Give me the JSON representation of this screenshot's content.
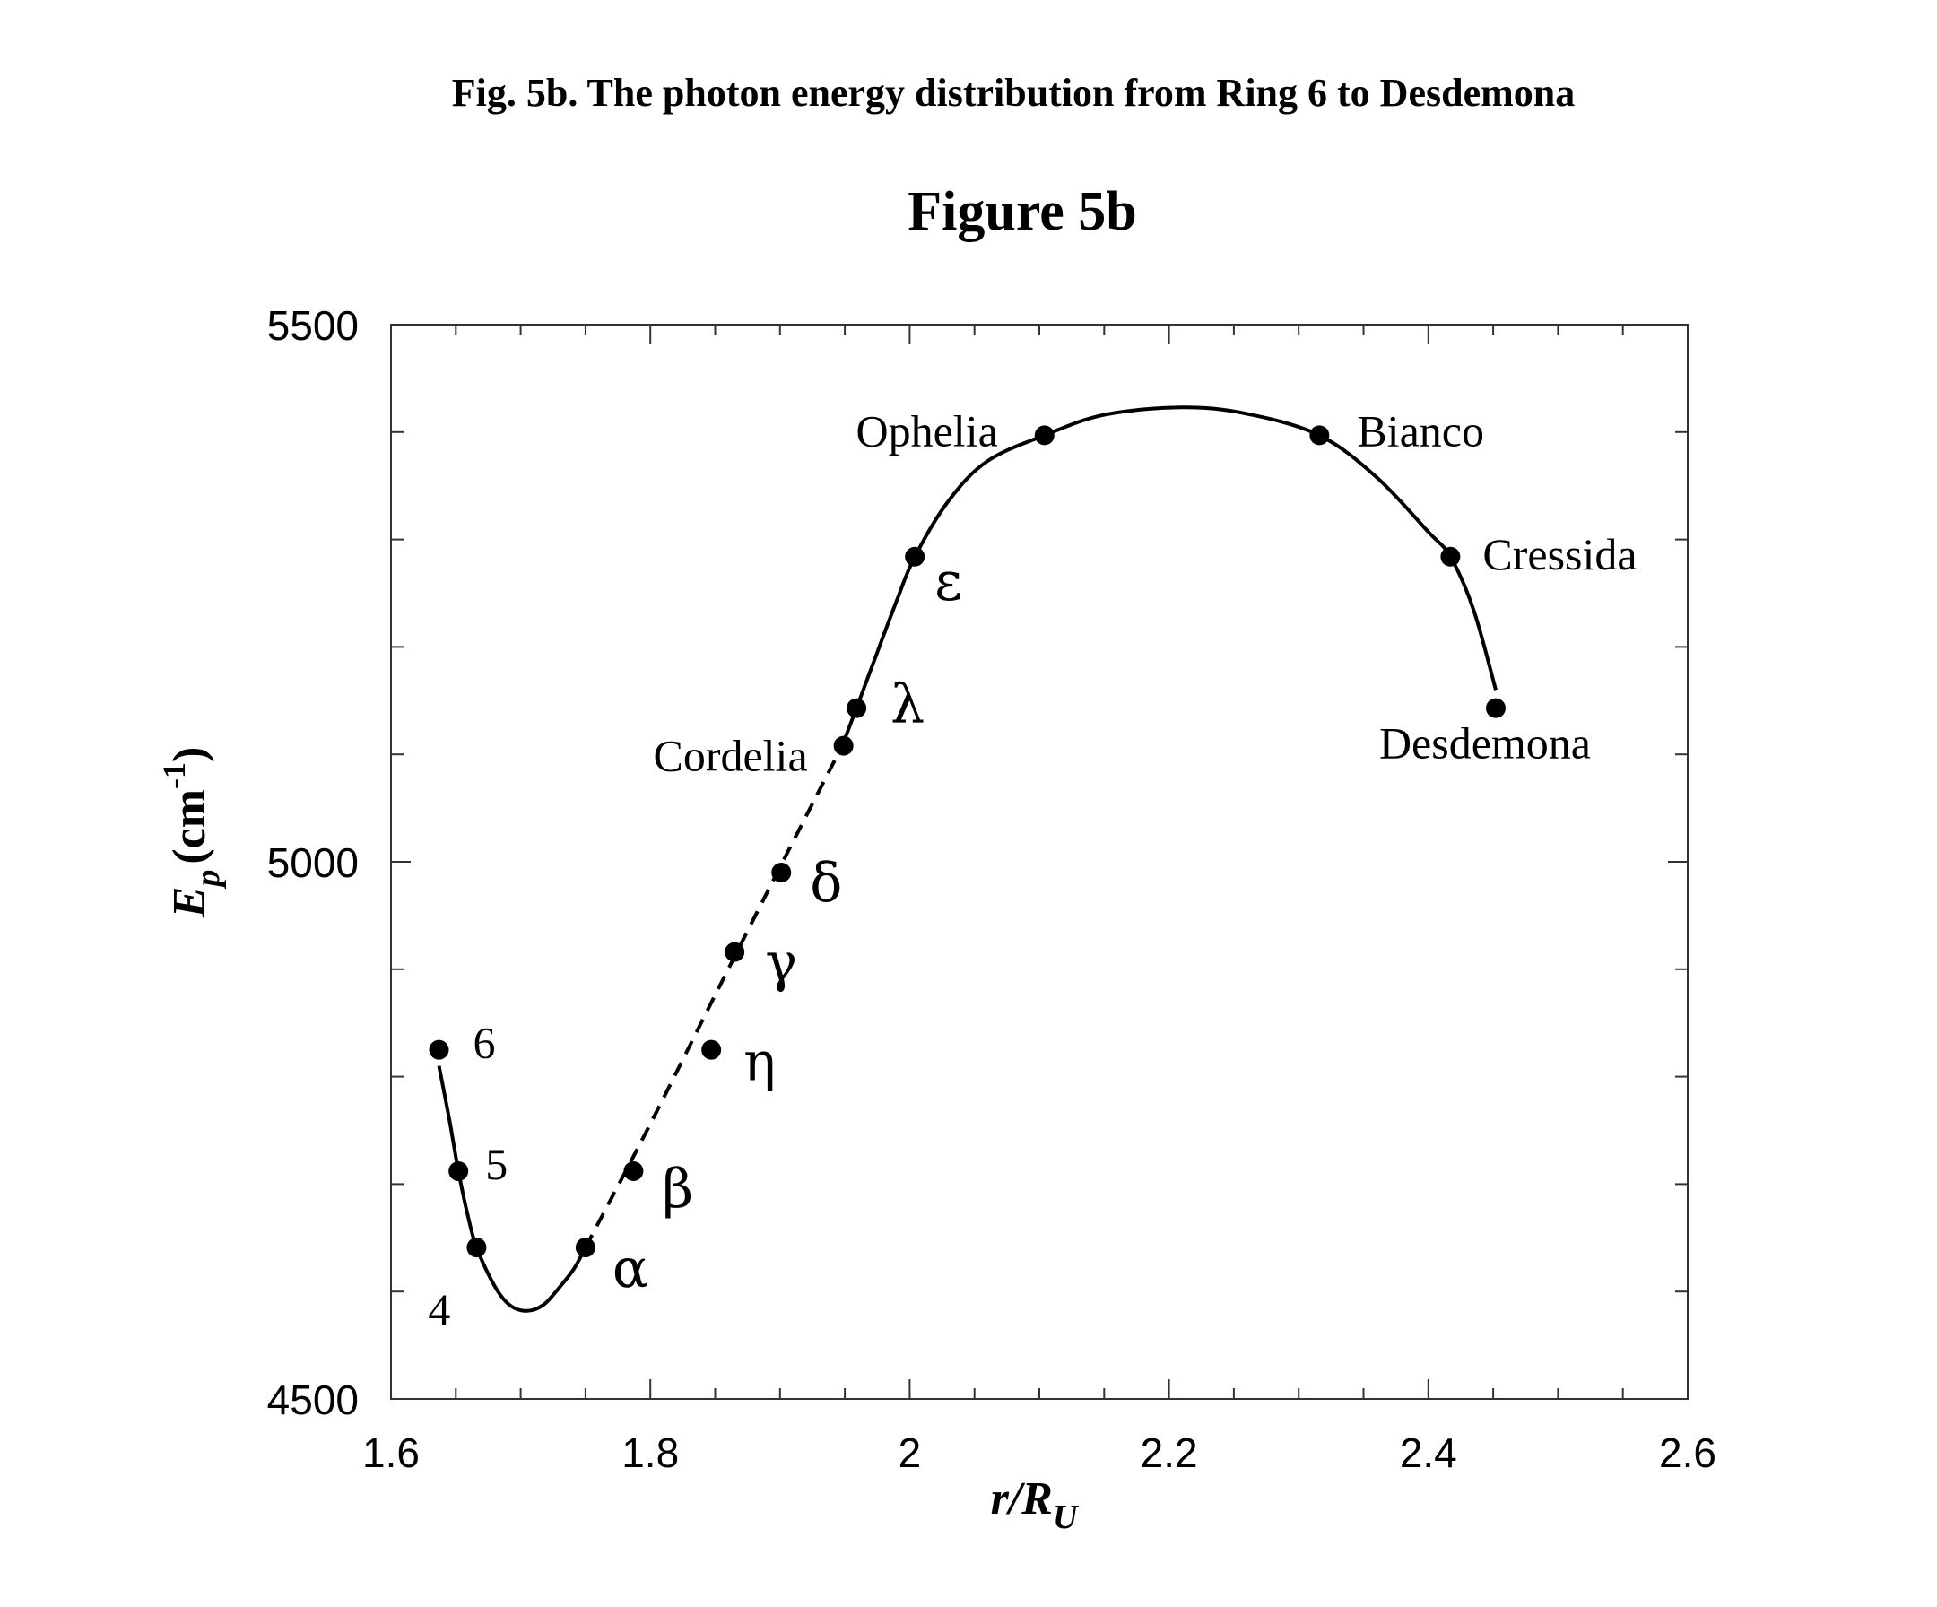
{
  "caption": "Fig. 5b. The photon energy distribution from Ring 6 to Desdemona",
  "chart_data": {
    "type": "scatter",
    "title": "Figure 5b",
    "xlabel": {
      "main": "r/R",
      "subscript": "U"
    },
    "ylabel": {
      "main": "E",
      "subscript": "p",
      "unit": "(cm",
      "superscript": "-1",
      "close": ")"
    },
    "xlim": [
      1.6,
      2.6
    ],
    "ylim": [
      4500,
      5500
    ],
    "xticks": [
      1.6,
      1.8,
      2.0,
      2.2,
      2.4,
      2.6
    ],
    "xtick_labels": [
      "1.6",
      "1.8",
      "2",
      "2.2",
      "2.4",
      "2.6"
    ],
    "yticks": [
      4500,
      5000,
      5500
    ],
    "ytick_labels": [
      "4500",
      "5000",
      "5500"
    ],
    "grid": false,
    "points": [
      {
        "label": "6",
        "x": 1.637,
        "y": 4825
      },
      {
        "label": "5",
        "x": 1.652,
        "y": 4712
      },
      {
        "label": "4",
        "x": 1.666,
        "y": 4641
      },
      {
        "label": "α",
        "x": 1.75,
        "y": 4641
      },
      {
        "label": "β",
        "x": 1.787,
        "y": 4712
      },
      {
        "label": "η",
        "x": 1.847,
        "y": 4825
      },
      {
        "label": "γ",
        "x": 1.865,
        "y": 4916
      },
      {
        "label": "δ",
        "x": 1.901,
        "y": 4990
      },
      {
        "label": "Cordelia",
        "x": 1.949,
        "y": 5108
      },
      {
        "label": "λ",
        "x": 1.959,
        "y": 5143
      },
      {
        "label": "ε",
        "x": 2.004,
        "y": 5284
      },
      {
        "label": "Ophelia",
        "x": 2.104,
        "y": 5397
      },
      {
        "label": "Bianco",
        "x": 2.316,
        "y": 5397
      },
      {
        "label": "Cressida",
        "x": 2.417,
        "y": 5284
      },
      {
        "label": "Desdemona",
        "x": 2.452,
        "y": 5143
      }
    ],
    "curves": [
      {
        "style": "solid",
        "x": [
          1.637,
          1.645,
          1.652,
          1.659,
          1.666,
          1.68,
          1.692,
          1.705,
          1.718,
          1.73,
          1.741,
          1.75
        ],
        "y": [
          4810,
          4760,
          4712,
          4672,
          4641,
          4605,
          4587,
          4582,
          4588,
          4604,
          4621,
          4641
        ]
      },
      {
        "style": "dashed",
        "x": [
          1.75,
          1.8,
          1.85,
          1.9,
          1.948
        ],
        "y": [
          4641,
          4756,
          4876,
          4995,
          5108
        ]
      },
      {
        "style": "solid",
        "x": [
          1.948,
          1.959,
          1.975,
          1.99,
          2.004,
          2.03,
          2.06,
          2.104,
          2.15,
          2.21,
          2.26,
          2.316,
          2.36,
          2.4,
          2.417,
          2.435,
          2.452
        ],
        "y": [
          5108,
          5143,
          5195,
          5243,
          5284,
          5336,
          5373,
          5397,
          5416,
          5423,
          5417,
          5397,
          5358,
          5307,
          5284,
          5234,
          5160
        ]
      }
    ]
  }
}
